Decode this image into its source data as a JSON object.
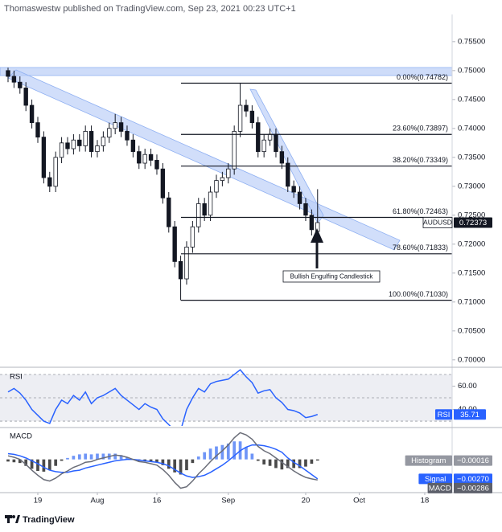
{
  "header": {
    "text": "Thomaswestw published on TradingView.com, Sep 23, 2021 00:23 UTC+1"
  },
  "footer": {
    "brand": "TradingView"
  },
  "chart_data": [
    {
      "type": "candlestick",
      "symbol": "AUDUSD",
      "annotation": "Bullish Engulfing Candlestick",
      "up_color": "#ffffff",
      "down_color": "#131722",
      "fib_color": "#131722",
      "x": [
        -5,
        -4,
        -3,
        -2,
        -1,
        0,
        1,
        2,
        3,
        4,
        5,
        6,
        7,
        8,
        9,
        10,
        11,
        12,
        13,
        14,
        15,
        16,
        17,
        18,
        19,
        20,
        21,
        22,
        23,
        24,
        25,
        26,
        27,
        28,
        29,
        30,
        31,
        32,
        33,
        34,
        35,
        36,
        37,
        38,
        39,
        40,
        41,
        42,
        43,
        44,
        45,
        46,
        47
      ],
      "open": [
        0.75,
        0.749,
        0.748,
        0.747,
        0.744,
        0.741,
        0.7385,
        0.7315,
        0.73,
        0.735,
        0.7375,
        0.7365,
        0.738,
        0.737,
        0.7395,
        0.736,
        0.737,
        0.7385,
        0.74,
        0.741,
        0.7395,
        0.738,
        0.736,
        0.734,
        0.7355,
        0.7345,
        0.733,
        0.728,
        0.723,
        0.717,
        0.714,
        0.7195,
        0.723,
        0.727,
        0.725,
        0.729,
        0.731,
        0.7315,
        0.733,
        0.7395,
        0.744,
        0.743,
        0.741,
        0.736,
        0.738,
        0.739,
        0.736,
        0.734,
        0.73,
        0.729,
        0.727,
        0.725,
        0.7222
      ],
      "high": [
        0.7505,
        0.75,
        0.749,
        0.748,
        0.745,
        0.742,
        0.7395,
        0.7325,
        0.736,
        0.7385,
        0.7385,
        0.739,
        0.739,
        0.7405,
        0.7405,
        0.738,
        0.7395,
        0.741,
        0.7425,
        0.742,
        0.7405,
        0.739,
        0.737,
        0.7365,
        0.7365,
        0.7355,
        0.734,
        0.729,
        0.724,
        0.718,
        0.7205,
        0.724,
        0.728,
        0.728,
        0.73,
        0.732,
        0.7325,
        0.734,
        0.7405,
        0.74782,
        0.745,
        0.744,
        0.742,
        0.739,
        0.74,
        0.74,
        0.737,
        0.735,
        0.731,
        0.73,
        0.728,
        0.726,
        0.7295
      ],
      "low": [
        0.748,
        0.747,
        0.746,
        0.743,
        0.74,
        0.7375,
        0.7305,
        0.729,
        0.729,
        0.734,
        0.7355,
        0.7355,
        0.736,
        0.736,
        0.735,
        0.735,
        0.736,
        0.7375,
        0.739,
        0.7385,
        0.737,
        0.735,
        0.733,
        0.733,
        0.7335,
        0.732,
        0.727,
        0.722,
        0.716,
        0.7103,
        0.713,
        0.7185,
        0.722,
        0.724,
        0.724,
        0.728,
        0.73,
        0.7305,
        0.732,
        0.7385,
        0.742,
        0.74,
        0.735,
        0.735,
        0.737,
        0.735,
        0.733,
        0.729,
        0.728,
        0.726,
        0.724,
        0.7215,
        0.721
      ],
      "close": [
        0.749,
        0.748,
        0.747,
        0.744,
        0.741,
        0.7385,
        0.7315,
        0.73,
        0.735,
        0.7375,
        0.7365,
        0.738,
        0.737,
        0.7395,
        0.736,
        0.737,
        0.7385,
        0.74,
        0.741,
        0.7395,
        0.738,
        0.736,
        0.734,
        0.7355,
        0.7345,
        0.733,
        0.728,
        0.723,
        0.717,
        0.714,
        0.7195,
        0.723,
        0.727,
        0.725,
        0.729,
        0.731,
        0.7315,
        0.733,
        0.7395,
        0.744,
        0.743,
        0.741,
        0.736,
        0.738,
        0.739,
        0.736,
        0.734,
        0.73,
        0.729,
        0.727,
        0.725,
        0.7225,
        0.72373
      ],
      "xlim": [
        -6.35,
        69.6
      ],
      "ylim": [
        0.699,
        0.7597
      ],
      "yticks": [
        {
          "value": 0.7,
          "label": "0.70000"
        },
        {
          "value": 0.705,
          "label": "0.70500"
        },
        {
          "value": 0.71,
          "label": "0.71000"
        },
        {
          "value": 0.715,
          "label": "0.71500"
        },
        {
          "value": 0.72,
          "label": "0.72000"
        },
        {
          "value": 0.725,
          "label": "0.72500"
        },
        {
          "value": 0.73,
          "label": "0.73000"
        },
        {
          "value": 0.735,
          "label": "0.73500"
        },
        {
          "value": 0.74,
          "label": "0.74000"
        },
        {
          "value": 0.745,
          "label": "0.74500"
        },
        {
          "value": 0.75,
          "label": "0.75000"
        },
        {
          "value": 0.755,
          "label": "0.75500"
        }
      ],
      "fib_levels": [
        {
          "label": "0.00%(0.74782)",
          "value": 0.74782
        },
        {
          "label": "23.60%(0.73897)",
          "value": 0.73897
        },
        {
          "label": "38.20%(0.73349)",
          "value": 0.73349
        },
        {
          "label": "61.80%(0.72463)",
          "value": 0.72463
        },
        {
          "label": "78.60%(0.71833)",
          "value": 0.71833
        },
        {
          "label": "100.00%(0.71030)",
          "value": 0.7103
        }
      ]
    },
    {
      "type": "line",
      "title": "RSI",
      "color": "#2962ff",
      "x": [
        -5,
        -4,
        -3,
        -2,
        -1,
        0,
        1,
        2,
        3,
        4,
        5,
        6,
        7,
        8,
        9,
        10,
        11,
        12,
        13,
        14,
        15,
        16,
        17,
        18,
        19,
        20,
        21,
        22,
        23,
        24,
        25,
        26,
        27,
        28,
        29,
        30,
        31,
        32,
        33,
        34,
        35,
        36,
        37,
        38,
        39,
        40,
        41,
        42,
        43,
        44,
        45,
        46,
        47
      ],
      "values": [
        55,
        58,
        54,
        48,
        40,
        35,
        30,
        28,
        40,
        48,
        45,
        52,
        48,
        55,
        45,
        50,
        52,
        55,
        58,
        52,
        48,
        44,
        40,
        45,
        42,
        40,
        32,
        27,
        22,
        22,
        40,
        50,
        58,
        55,
        62,
        64,
        65,
        66,
        70,
        74,
        68,
        63,
        54,
        56,
        57,
        50,
        46,
        40,
        39,
        37,
        33,
        34,
        35.71
      ],
      "xlim": [
        -6.35,
        69.6
      ],
      "ylim": [
        25.9,
        74.8
      ],
      "yticks": [
        {
          "value": 60,
          "label": "60.00"
        },
        {
          "value": 40,
          "label": "40.00"
        }
      ],
      "band": [
        30,
        70
      ],
      "levels": [
        70,
        50,
        30
      ]
    },
    {
      "type": "macd",
      "title": "MACD",
      "x": [
        -5,
        -4,
        -3,
        -2,
        -1,
        0,
        1,
        2,
        3,
        4,
        5,
        6,
        7,
        8,
        9,
        10,
        11,
        12,
        13,
        14,
        15,
        16,
        17,
        18,
        19,
        20,
        21,
        22,
        23,
        24,
        25,
        26,
        27,
        28,
        29,
        30,
        31,
        32,
        33,
        34,
        35,
        36,
        37,
        38,
        39,
        40,
        41,
        42,
        43,
        44,
        45,
        46,
        47
      ],
      "xlim": [
        -6.35,
        69.6
      ],
      "ylim": [
        -0.0045,
        0.0042
      ],
      "xticks": [
        {
          "value": 0,
          "label": "19"
        },
        {
          "value": 10,
          "label": "Aug"
        },
        {
          "value": 20,
          "label": "16"
        },
        {
          "value": 32,
          "label": "Sep"
        },
        {
          "value": 45,
          "label": "20"
        },
        {
          "value": 54,
          "label": "Oct"
        },
        {
          "value": 65,
          "label": "18"
        }
      ],
      "series": [
        {
          "name": "Histogram",
          "kind": "bar",
          "color": "#6f95f7",
          "neg_color": "#4a4a4a",
          "tag_color": "#9598a1",
          "last_label": "−0.00016",
          "values": [
            -0.0003,
            -0.0004,
            -0.0005,
            -0.0009,
            -0.0013,
            -0.0016,
            -0.0017,
            -0.0015,
            -0.0009,
            -0.0002,
            0.0002,
            0.0005,
            0.0007,
            0.0008,
            0.0007,
            0.0008,
            0.0008,
            0.0008,
            0.0008,
            0.0006,
            0.0003,
            0,
            -0.0002,
            -0.0002,
            -0.0003,
            -0.0004,
            -0.0008,
            -0.0013,
            -0.0018,
            -0.0021,
            -0.0015,
            -0.0005,
            0.0004,
            0.001,
            0.0015,
            0.0018,
            0.002,
            0.0022,
            0.0025,
            0.0025,
            0.0017,
            0.0008,
            -0.0002,
            -0.0007,
            -0.0009,
            -0.0012,
            -0.0014,
            -0.0012,
            -0.0012,
            -0.0012,
            -0.001,
            -0.0006,
            -0.00016
          ]
        },
        {
          "name": "Signal",
          "kind": "line",
          "color": "#2962ff",
          "tag_color": "#2962ff",
          "last_label": "−0.00270",
          "values": [
            0.0008,
            0.0007,
            0.0005,
            0.0002,
            -0.0002,
            -0.0006,
            -0.0011,
            -0.0015,
            -0.0017,
            -0.0018,
            -0.0018,
            -0.0016,
            -0.0015,
            -0.0012,
            -0.001,
            -0.0008,
            -0.0006,
            -0.0004,
            -0.0002,
            -0.0001,
            0,
            0,
            -0.0001,
            -0.0002,
            -0.0003,
            -0.0004,
            -0.0006,
            -0.0009,
            -0.0014,
            -0.0019,
            -0.0023,
            -0.0025,
            -0.0024,
            -0.0022,
            -0.0018,
            -0.0013,
            -0.0008,
            -0.0002,
            0.0005,
            0.0012,
            0.0017,
            0.002,
            0.002,
            0.0019,
            0.0017,
            0.0014,
            0.001,
            0.0002,
            -0.0004,
            -0.0009,
            -0.0015,
            -0.0021,
            -0.0027
          ]
        },
        {
          "name": "MACD",
          "kind": "line",
          "color": "#6a6d78",
          "tag_color": "#5d606b",
          "last_label": "−0.00286",
          "values": [
            0.0005,
            0.0003,
            0,
            -0.0007,
            -0.0015,
            -0.0022,
            -0.0028,
            -0.003,
            -0.0026,
            -0.002,
            -0.0016,
            -0.0011,
            -0.0008,
            -0.0004,
            -0.0003,
            0,
            0.0002,
            0.0004,
            0.0006,
            0.0005,
            0.0003,
            0,
            -0.0003,
            -0.0004,
            -0.0006,
            -0.0008,
            -0.0014,
            -0.0022,
            -0.0032,
            -0.004,
            -0.0038,
            -0.003,
            -0.002,
            -0.0012,
            -0.0003,
            0.0005,
            0.0012,
            0.002,
            0.003,
            0.0037,
            0.0034,
            0.0028,
            0.0018,
            0.0012,
            0.0008,
            0.0002,
            -0.0004,
            -0.001,
            -0.0016,
            -0.0021,
            -0.0025,
            -0.0027,
            -0.00286
          ]
        }
      ]
    }
  ]
}
